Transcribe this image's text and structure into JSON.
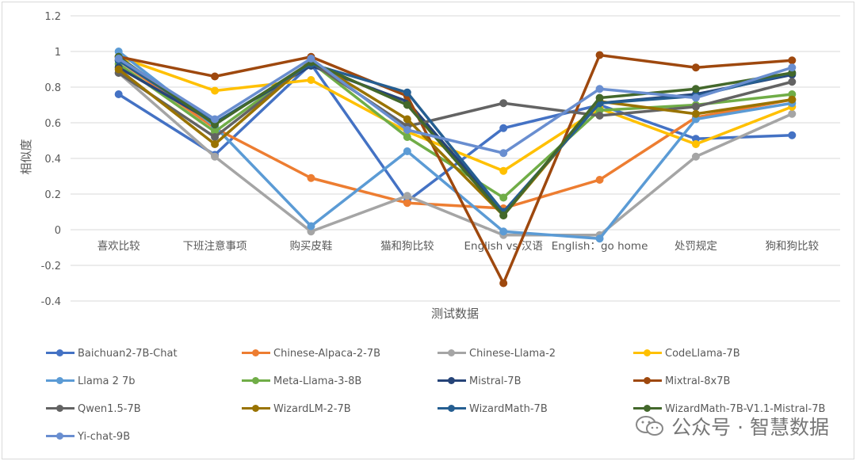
{
  "chart_data": {
    "type": "line",
    "title": "",
    "xlabel": "测试数据",
    "ylabel": "相似度",
    "ylim": [
      -0.4,
      1.2
    ],
    "yticks": [
      "-0.4",
      "-0.2",
      "0",
      "0.2",
      "0.4",
      "0.6",
      "0.8",
      "1",
      "1.2"
    ],
    "grid": true,
    "legend_position": "bottom",
    "categories": [
      "喜欢比较",
      "下班注意事项",
      "购买皮鞋",
      "猫和狗比较",
      "English vs 汉语",
      "English：go home",
      "处罚规定",
      "狗和狗比较"
    ],
    "series": [
      {
        "name": "Baichuan2-7B-Chat",
        "color": "#4472C4",
        "values": [
          0.76,
          0.42,
          0.93,
          0.16,
          0.57,
          0.7,
          0.51,
          0.53
        ]
      },
      {
        "name": "Chinese-Alpaca-2-7B",
        "color": "#ED7D31",
        "values": [
          0.95,
          0.57,
          0.29,
          0.15,
          0.12,
          0.28,
          0.63,
          0.73
        ]
      },
      {
        "name": "Chinese-Llama-2",
        "color": "#A5A5A5",
        "values": [
          0.88,
          0.41,
          -0.01,
          0.19,
          -0.03,
          -0.03,
          0.41,
          0.65
        ]
      },
      {
        "name": "CodeLlama-7B",
        "color": "#FFC000",
        "values": [
          0.97,
          0.78,
          0.84,
          0.55,
          0.33,
          0.68,
          0.48,
          0.69
        ]
      },
      {
        "name": "Llama 2 7b",
        "color": "#5B9BD5",
        "values": [
          1.0,
          0.58,
          0.02,
          0.44,
          -0.01,
          -0.05,
          0.62,
          0.71
        ]
      },
      {
        "name": "Meta-Llama-3-8B",
        "color": "#70AD47",
        "values": [
          0.93,
          0.55,
          0.94,
          0.52,
          0.18,
          0.67,
          0.7,
          0.76
        ]
      },
      {
        "name": "Mistral-7B",
        "color": "#264478",
        "values": [
          0.91,
          0.6,
          0.92,
          0.72,
          0.1,
          0.71,
          0.76,
          0.87
        ]
      },
      {
        "name": "Mixtral-8x7B",
        "color": "#9E480E",
        "values": [
          0.97,
          0.86,
          0.97,
          0.75,
          -0.3,
          0.98,
          0.91,
          0.95
        ]
      },
      {
        "name": "Qwen1.5-7B",
        "color": "#636363",
        "values": [
          0.88,
          0.52,
          0.94,
          0.58,
          0.71,
          0.64,
          0.69,
          0.83
        ]
      },
      {
        "name": "WizardLM-2-7B",
        "color": "#997300",
        "values": [
          0.9,
          0.48,
          0.95,
          0.62,
          0.08,
          0.72,
          0.65,
          0.73
        ]
      },
      {
        "name": "WizardMath-7B",
        "color": "#255E91",
        "values": [
          0.95,
          0.6,
          0.93,
          0.77,
          0.1,
          0.71,
          0.75,
          0.88
        ]
      },
      {
        "name": "WizardMath-7B-V1.1-Mistral-7B",
        "color": "#43682B",
        "values": [
          0.97,
          0.59,
          0.94,
          0.7,
          0.08,
          0.74,
          0.79,
          0.88
        ]
      },
      {
        "name": "Yi-chat-9B",
        "color": "#698ED0",
        "values": [
          0.96,
          0.62,
          0.96,
          0.56,
          0.43,
          0.79,
          0.74,
          0.91
        ]
      }
    ]
  },
  "watermark": {
    "text": "公众号 · 智慧数据",
    "icon": "wechat-icon"
  }
}
